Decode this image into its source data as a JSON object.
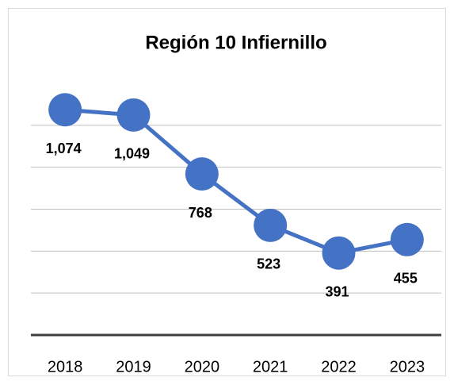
{
  "chart_data": {
    "type": "line",
    "title": "Región 10 Infiernillo",
    "categories": [
      "2018",
      "2019",
      "2020",
      "2021",
      "2022",
      "2023"
    ],
    "values": [
      1074,
      1049,
      768,
      523,
      391,
      455
    ],
    "value_labels": [
      "1,074",
      "1,049",
      "768",
      "523",
      "391",
      "455"
    ],
    "color": "#4472c4",
    "ylim": [
      0,
      1200
    ],
    "yticks": [
      0,
      200,
      400,
      600,
      800,
      1000
    ],
    "grid": true
  }
}
